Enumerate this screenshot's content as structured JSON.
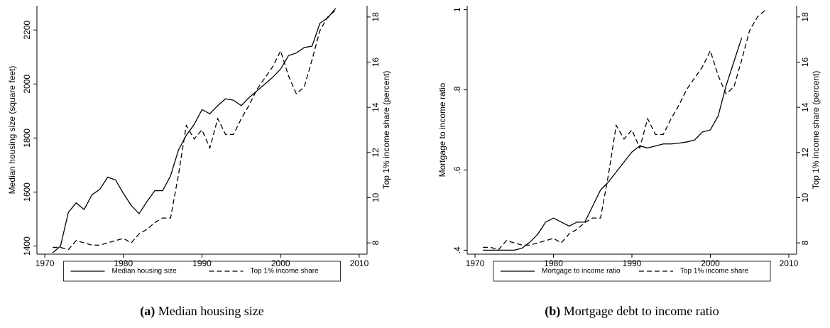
{
  "chart_data": [
    {
      "type": "line",
      "caption_label": "(a)",
      "caption": "Median housing size",
      "ylabel": "Median housing size (square feet)",
      "y2label": "Top 1% income share (percent)",
      "x": [
        1971,
        1972,
        1973,
        1974,
        1975,
        1976,
        1977,
        1978,
        1979,
        1980,
        1981,
        1982,
        1983,
        1984,
        1985,
        1986,
        1987,
        1988,
        1989,
        1990,
        1991,
        1992,
        1993,
        1994,
        1995,
        1996,
        1997,
        1998,
        1999,
        2000,
        2001,
        2002,
        2003,
        2004,
        2005,
        2006,
        2007
      ],
      "xlim": [
        1969,
        2011
      ],
      "xticks": [
        1970,
        1980,
        1990,
        2000,
        2010
      ],
      "ylim": [
        1370,
        2290
      ],
      "yticks": [
        1400,
        1600,
        1800,
        2000,
        2200
      ],
      "y2lim": [
        7.5,
        18.5
      ],
      "y2ticks": [
        8,
        10,
        12,
        14,
        16,
        18
      ],
      "series": [
        {
          "name": "Median housing size",
          "color": "#000000",
          "dash": "solid",
          "axis": "y",
          "values": [
            1375,
            1400,
            1525,
            1560,
            1535,
            1590,
            1610,
            1655,
            1645,
            1595,
            1550,
            1520,
            1565,
            1605,
            1605,
            1660,
            1755,
            1810,
            1850,
            1905,
            1890,
            1920,
            1945,
            1940,
            1920,
            1950,
            1975,
            2000,
            2025,
            2055,
            2105,
            2115,
            2135,
            2140,
            2225,
            2245,
            2280
          ]
        },
        {
          "name": "Top 1% income share",
          "color": "#000000",
          "dash": "dashed",
          "axis": "y2",
          "values": [
            7.8,
            7.8,
            7.7,
            8.1,
            8.0,
            7.9,
            7.9,
            8.0,
            8.1,
            8.2,
            8.0,
            8.4,
            8.6,
            8.9,
            9.1,
            9.1,
            11.0,
            13.2,
            12.6,
            13.0,
            12.2,
            13.5,
            12.8,
            12.8,
            13.5,
            14.1,
            14.8,
            15.3,
            15.8,
            16.5,
            15.4,
            14.6,
            14.9,
            16.1,
            17.4,
            18.0,
            18.3
          ]
        }
      ]
    },
    {
      "type": "line",
      "caption_label": "(b)",
      "caption": "Mortgage debt to income ratio",
      "ylabel": "Mortgage to income ratio",
      "y2label": "Top 1% income share (percent)",
      "x": [
        1971,
        1972,
        1973,
        1974,
        1975,
        1976,
        1977,
        1978,
        1979,
        1980,
        1981,
        1982,
        1983,
        1984,
        1985,
        1986,
        1987,
        1988,
        1989,
        1990,
        1991,
        1992,
        1993,
        1994,
        1995,
        1996,
        1997,
        1998,
        1999,
        2000,
        2001,
        2002,
        2003,
        2004,
        2005,
        2006,
        2007
      ],
      "xlim": [
        1969,
        2011
      ],
      "xticks": [
        1970,
        1980,
        1990,
        2000,
        2010
      ],
      "ylim": [
        0.39,
        1.01
      ],
      "yticks": [
        {
          "value": 0.4,
          "label": ".4"
        },
        {
          "value": 0.6,
          "label": ".6"
        },
        {
          "value": 0.8,
          "label": ".8"
        },
        1
      ],
      "y2lim": [
        7.5,
        18.5
      ],
      "y2ticks": [
        8,
        10,
        12,
        14,
        16,
        18
      ],
      "series": [
        {
          "name": "Mortgage to income ratio",
          "color": "#000000",
          "dash": "solid",
          "axis": "y",
          "values": [
            0.4,
            0.4,
            0.4,
            0.4,
            0.4,
            0.405,
            0.42,
            0.44,
            0.47,
            0.48,
            0.47,
            0.46,
            0.47,
            0.47,
            0.51,
            0.55,
            0.57,
            0.595,
            0.62,
            0.645,
            0.66,
            0.655,
            0.66,
            0.665,
            0.665,
            0.667,
            0.67,
            0.675,
            0.695,
            0.7,
            0.735,
            0.81,
            0.87,
            0.93,
            null,
            null,
            null
          ]
        },
        {
          "name": "Top 1% income share",
          "color": "#000000",
          "dash": "dashed",
          "axis": "y2",
          "values": [
            7.8,
            7.8,
            7.7,
            8.1,
            8.0,
            7.9,
            7.9,
            8.0,
            8.1,
            8.2,
            8.0,
            8.4,
            8.6,
            8.9,
            9.1,
            9.1,
            11.0,
            13.2,
            12.6,
            13.0,
            12.2,
            13.5,
            12.8,
            12.8,
            13.5,
            14.1,
            14.8,
            15.3,
            15.8,
            16.5,
            15.4,
            14.6,
            14.9,
            16.1,
            17.4,
            18.0,
            18.3
          ]
        }
      ]
    }
  ]
}
